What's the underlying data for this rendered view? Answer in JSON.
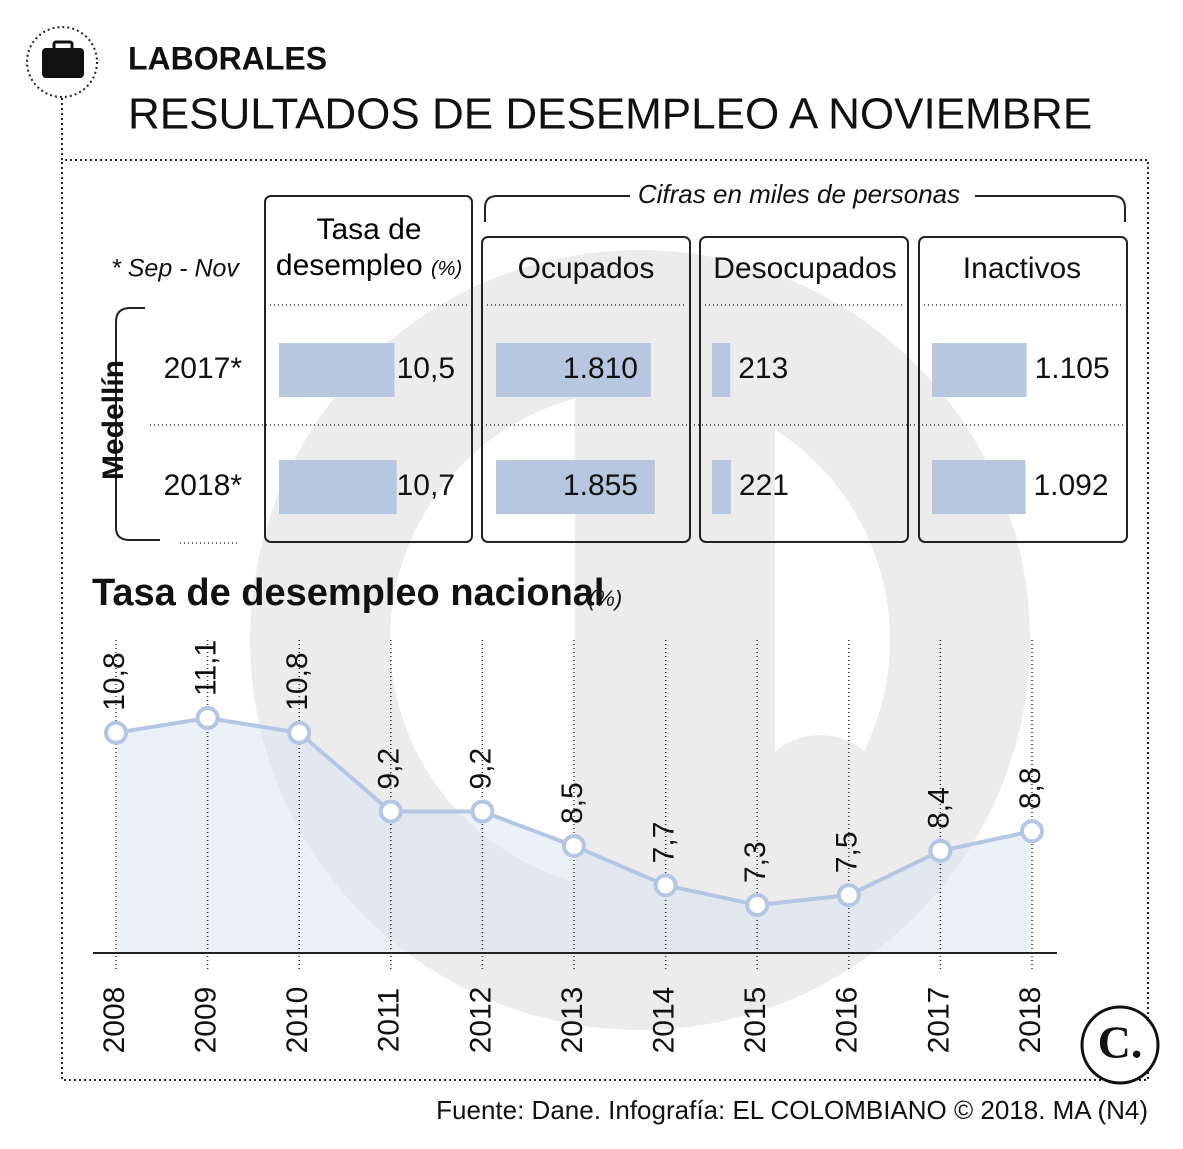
{
  "header": {
    "section": "LABORALES",
    "title": "RESULTADOS DE DESEMPLEO A NOVIEMBRE"
  },
  "table": {
    "note": "* Sep - Nov",
    "group_label": "Medellín",
    "units_note": "Cifras en miles de personas",
    "rows": [
      "2017*",
      "2018*"
    ],
    "columns": [
      {
        "name": "Tasa de desempleo",
        "unit": "(%)",
        "color": "#b7c7e0",
        "values": [
          10.5,
          10.7
        ],
        "value_labels": [
          "10,5",
          "10,7"
        ]
      },
      {
        "name": "Ocupados",
        "color": "#b7c7e0",
        "values": [
          1810,
          1855
        ],
        "value_labels": [
          "1.810",
          "1.855"
        ]
      },
      {
        "name": "Desocupados",
        "color": "#b7c7e0",
        "values": [
          213,
          221
        ],
        "value_labels": [
          "213",
          "221"
        ]
      },
      {
        "name": "Inactivos",
        "color": "#b7c7e0",
        "values": [
          1105,
          1092
        ],
        "value_labels": [
          "1.105",
          "1.092"
        ]
      }
    ]
  },
  "chart_data": {
    "type": "line",
    "title": "Tasa de desempleo nacional",
    "unit": "(%)",
    "color": "#b4c6e4",
    "categories": [
      "2008",
      "2009",
      "2010",
      "2011",
      "2012",
      "2013",
      "2014",
      "2015",
      "2016",
      "2017",
      "2018"
    ],
    "values": [
      10.8,
      11.1,
      10.8,
      9.2,
      9.2,
      8.5,
      7.7,
      7.3,
      7.5,
      8.4,
      8.8
    ],
    "value_labels": [
      "10,8",
      "11,1",
      "10,8",
      "9,2",
      "9,2",
      "8,5",
      "7,7",
      "7,3",
      "7,5",
      "8,4",
      "8,8"
    ]
  },
  "source": "Fuente: Dane. Infografía: EL COLOMBIANO © 2018. MA (N4)"
}
